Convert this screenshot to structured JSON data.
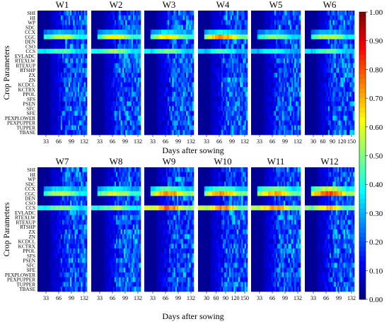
{
  "chart_data": {
    "type": "heatmap",
    "colormap": "jet",
    "colorbar": {
      "range": [
        0,
        1
      ],
      "ticks": [
        "1.00",
        "0.90",
        "0.80",
        "0.70",
        "0.60",
        "0.50",
        "0.40",
        "0.30",
        "0.20",
        "0.10",
        "0.00"
      ]
    },
    "ylabel": "Crop Parameters",
    "xlabel": "Days after sowing",
    "parameters": [
      "SHI",
      "HI",
      "WP",
      "SDC",
      "CCX",
      "CGC",
      "DEN",
      "CSO",
      "CCS",
      "EVLADC",
      "RTEXLW",
      "RTEXUP",
      "RTSHP",
      "ZX",
      "ZN",
      "KCDCL",
      "KCTRX",
      "PPOL",
      "SFS",
      "PSEN",
      "SFC",
      "SFE",
      "PEXPLOWER",
      "PEXPUPPER",
      "TUPPER",
      "TBASE"
    ],
    "panels": [
      {
        "title": "W1",
        "xticks": [
          "33",
          "66",
          "99",
          "132"
        ],
        "hot": {
          "CGC": 0.55,
          "CCS": 0.45,
          "CCX": 0.3
        }
      },
      {
        "title": "W2",
        "xticks": [
          "33",
          "66",
          "99",
          "132"
        ],
        "hot": {
          "CGC": 0.6,
          "CCS": 0.5,
          "CCX": 0.32
        }
      },
      {
        "title": "W3",
        "xticks": [
          "33",
          "66",
          "99",
          "132"
        ],
        "hot": {
          "CGC": 0.62,
          "CCS": 0.48,
          "CCX": 0.35
        }
      },
      {
        "title": "W4",
        "xticks": [
          "33",
          "66",
          "99",
          "132"
        ],
        "hot": {
          "CGC": 0.72,
          "CCS": 0.42,
          "CCX": 0.38
        }
      },
      {
        "title": "W5",
        "xticks": [
          "33",
          "66",
          "99",
          "132"
        ],
        "hot": {
          "CGC": 0.5,
          "CCS": 0.4,
          "CCX": 0.3
        }
      },
      {
        "title": "W6",
        "xticks": [
          "30",
          "60",
          "90",
          "120",
          "150"
        ],
        "hot": {
          "CGC": 0.55,
          "CCS": 0.45,
          "CCX": 0.3
        }
      },
      {
        "title": "W7",
        "xticks": [
          "33",
          "66",
          "99",
          "132"
        ],
        "hot": {
          "CGC": 0.55,
          "CCS": 0.5,
          "CCX": 0.35
        }
      },
      {
        "title": "W8",
        "xticks": [
          "33",
          "66",
          "99",
          "132"
        ],
        "hot": {
          "CGC": 0.58,
          "CCS": 0.52,
          "CCX": 0.38
        }
      },
      {
        "title": "W9",
        "xticks": [
          "33",
          "66",
          "99",
          "132"
        ],
        "hot": {
          "CGC": 0.72,
          "CCS": 0.75,
          "CCX": 0.45
        }
      },
      {
        "title": "W10",
        "xticks": [
          "30",
          "60",
          "90",
          "120",
          "150"
        ],
        "hot": {
          "CGC": 0.7,
          "CCS": 0.72,
          "CCX": 0.45
        }
      },
      {
        "title": "W11",
        "xticks": [
          "33",
          "66",
          "99",
          "132"
        ],
        "hot": {
          "CGC": 0.68,
          "CCS": 0.7,
          "CCX": 0.5
        }
      },
      {
        "title": "W12",
        "xticks": [
          "33",
          "66",
          "99",
          "132"
        ],
        "hot": {
          "CGC": 0.8,
          "CCS": 0.65,
          "CCX": 0.55
        }
      }
    ]
  }
}
